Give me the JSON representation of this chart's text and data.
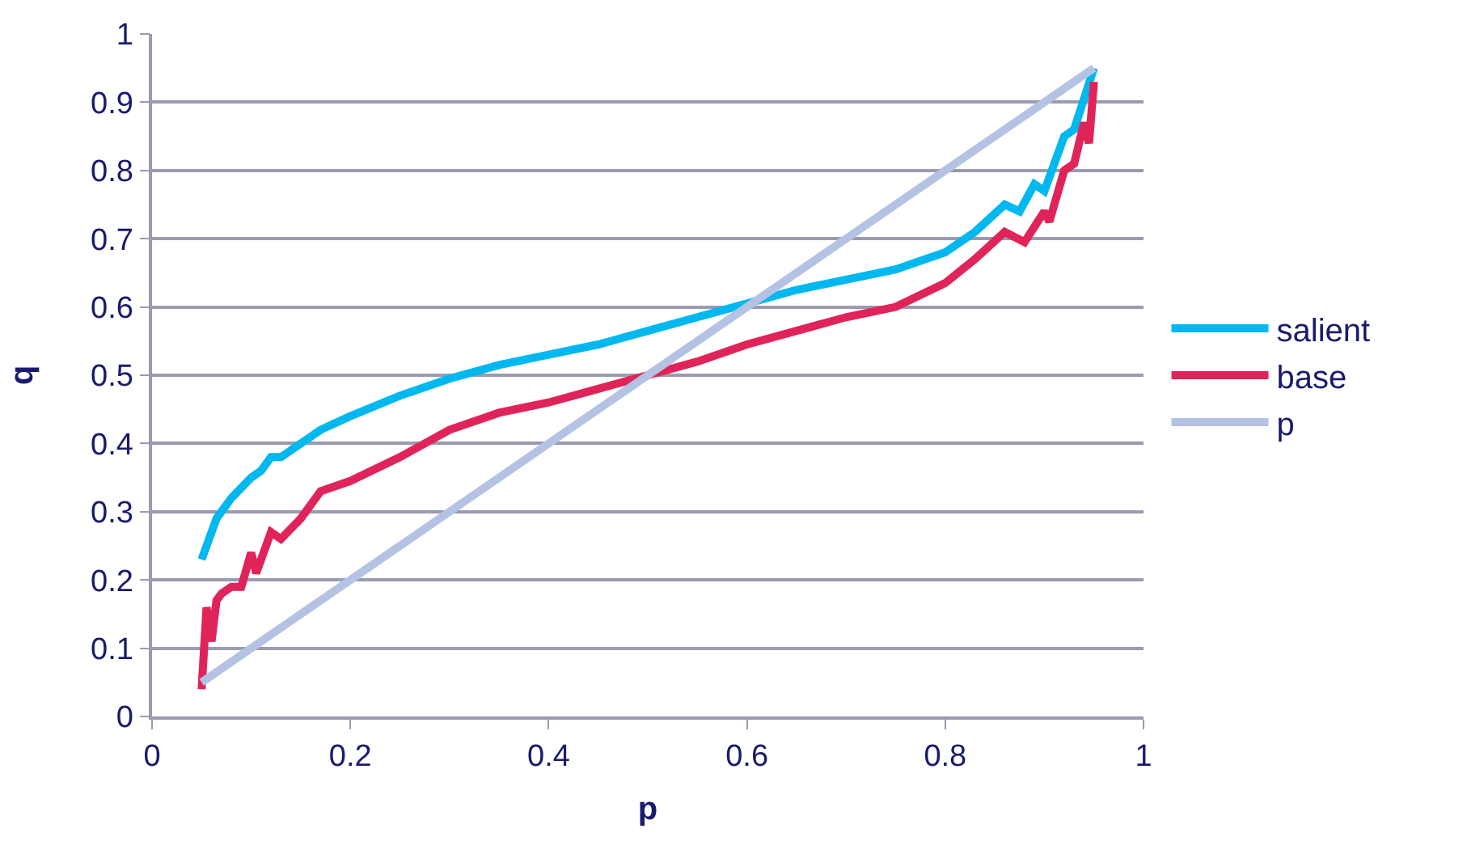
{
  "chart_data": {
    "type": "line",
    "xlabel": "p",
    "ylabel": "q",
    "xlim": [
      0,
      1
    ],
    "xticks": [
      0,
      0.2,
      0.4,
      0.6,
      0.8,
      1
    ],
    "ylim": [
      0,
      1
    ],
    "yticks": [
      0,
      0.1,
      0.2,
      0.3,
      0.4,
      0.5,
      0.6,
      0.7,
      0.8,
      0.9,
      1
    ],
    "grid": "y",
    "legend": "right",
    "marker": "none",
    "line_style": "solid",
    "series": [
      {
        "name": "salient",
        "color": "#00b8f0",
        "x": [
          0.05,
          0.06,
          0.065,
          0.08,
          0.1,
          0.11,
          0.12,
          0.13,
          0.17,
          0.2,
          0.25,
          0.3,
          0.35,
          0.4,
          0.45,
          0.5,
          0.55,
          0.6,
          0.65,
          0.7,
          0.75,
          0.8,
          0.83,
          0.86,
          0.875,
          0.89,
          0.9,
          0.92,
          0.93,
          0.95
        ],
        "values": [
          0.23,
          0.27,
          0.29,
          0.32,
          0.35,
          0.36,
          0.38,
          0.38,
          0.42,
          0.44,
          0.47,
          0.495,
          0.515,
          0.53,
          0.545,
          0.565,
          0.585,
          0.605,
          0.625,
          0.64,
          0.655,
          0.68,
          0.71,
          0.75,
          0.74,
          0.78,
          0.77,
          0.85,
          0.86,
          0.95
        ]
      },
      {
        "name": "base",
        "color": "#e0245a",
        "x": [
          0.05,
          0.055,
          0.06,
          0.065,
          0.07,
          0.08,
          0.09,
          0.1,
          0.105,
          0.12,
          0.13,
          0.15,
          0.17,
          0.2,
          0.25,
          0.3,
          0.35,
          0.4,
          0.45,
          0.5,
          0.55,
          0.6,
          0.65,
          0.7,
          0.75,
          0.8,
          0.83,
          0.86,
          0.88,
          0.9,
          0.905,
          0.92,
          0.93,
          0.94,
          0.945,
          0.95
        ],
        "values": [
          0.04,
          0.16,
          0.11,
          0.17,
          0.18,
          0.19,
          0.19,
          0.24,
          0.21,
          0.27,
          0.26,
          0.29,
          0.33,
          0.345,
          0.38,
          0.42,
          0.445,
          0.46,
          0.48,
          0.5,
          0.52,
          0.545,
          0.565,
          0.585,
          0.6,
          0.635,
          0.67,
          0.71,
          0.695,
          0.74,
          0.725,
          0.8,
          0.81,
          0.87,
          0.84,
          0.93
        ]
      },
      {
        "name": "p",
        "color": "#b4c2e4",
        "x": [
          0.05,
          0.95
        ],
        "values": [
          0.05,
          0.95
        ]
      }
    ]
  }
}
